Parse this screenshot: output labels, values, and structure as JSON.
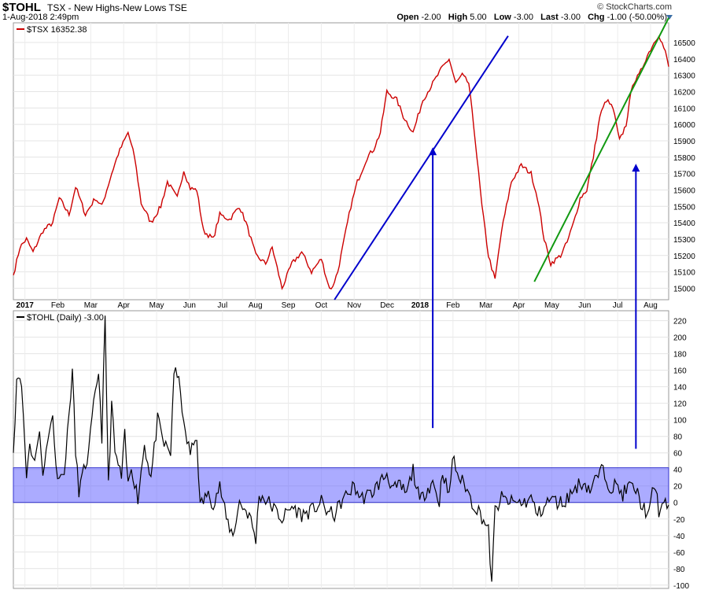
{
  "header": {
    "symbol": "$TOHL",
    "description": "TSX - New Highs-New Lows TSE",
    "date": "1-Aug-2018 2:49pm",
    "brand": "© StockCharts.com",
    "quote": {
      "open_label": "Open",
      "open": "-2.00",
      "high_label": "High",
      "high": "5.00",
      "low_label": "Low",
      "low": "-3.00",
      "last_label": "Last",
      "last": "-3.00",
      "chg_label": "Chg",
      "chg": "-1.00 (-50.00%)"
    }
  },
  "colors": {
    "tsx": "#cc0000",
    "tohl": "#000000",
    "band": "#6666ff",
    "blue_line": "#0000cc",
    "green_line": "#119911",
    "arrow": "#0000cc"
  },
  "chart_data": [
    {
      "type": "line",
      "legend": "$TSX 16352.38",
      "y_ticks": [
        15000,
        15100,
        15200,
        15300,
        15400,
        15500,
        15600,
        15700,
        15800,
        15900,
        16000,
        16100,
        16200,
        16300,
        16400,
        16500
      ],
      "ylim": [
        14930,
        16620
      ],
      "x_ticks": [
        "2017",
        "Feb",
        "Mar",
        "Apr",
        "May",
        "Jun",
        "Jul",
        "Aug",
        "Sep",
        "Oct",
        "Nov",
        "Dec",
        "2018",
        "Feb",
        "Mar",
        "Apr",
        "May",
        "Jun",
        "Jul",
        "Aug"
      ],
      "series": [
        {
          "name": "$TSX",
          "anchors": [
            [
              0,
              15080
            ],
            [
              0.01,
              15250
            ],
            [
              0.02,
              15300
            ],
            [
              0.03,
              15220
            ],
            [
              0.045,
              15350
            ],
            [
              0.06,
              15400
            ],
            [
              0.07,
              15550
            ],
            [
              0.085,
              15450
            ],
            [
              0.095,
              15620
            ],
            [
              0.11,
              15450
            ],
            [
              0.125,
              15550
            ],
            [
              0.135,
              15500
            ],
            [
              0.15,
              15700
            ],
            [
              0.16,
              15820
            ],
            [
              0.175,
              15950
            ],
            [
              0.185,
              15800
            ],
            [
              0.195,
              15520
            ],
            [
              0.21,
              15400
            ],
            [
              0.225,
              15500
            ],
            [
              0.235,
              15650
            ],
            [
              0.25,
              15550
            ],
            [
              0.26,
              15720
            ],
            [
              0.27,
              15610
            ],
            [
              0.28,
              15600
            ],
            [
              0.29,
              15350
            ],
            [
              0.305,
              15300
            ],
            [
              0.315,
              15450
            ],
            [
              0.33,
              15420
            ],
            [
              0.345,
              15500
            ],
            [
              0.355,
              15400
            ],
            [
              0.37,
              15200
            ],
            [
              0.385,
              15150
            ],
            [
              0.395,
              15250
            ],
            [
              0.41,
              15000
            ],
            [
              0.425,
              15150
            ],
            [
              0.44,
              15220
            ],
            [
              0.455,
              15100
            ],
            [
              0.47,
              15180
            ],
            [
              0.48,
              15030
            ],
            [
              0.485,
              14990
            ],
            [
              0.495,
              15100
            ],
            [
              0.505,
              15300
            ],
            [
              0.515,
              15500
            ],
            [
              0.525,
              15650
            ],
            [
              0.54,
              15800
            ],
            [
              0.55,
              15850
            ],
            [
              0.56,
              15950
            ],
            [
              0.57,
              16200
            ],
            [
              0.585,
              16150
            ],
            [
              0.595,
              16050
            ],
            [
              0.61,
              15950
            ],
            [
              0.625,
              16150
            ],
            [
              0.64,
              16250
            ],
            [
              0.655,
              16350
            ],
            [
              0.665,
              16400
            ],
            [
              0.675,
              16250
            ],
            [
              0.685,
              16300
            ],
            [
              0.695,
              16250
            ],
            [
              0.705,
              15900
            ],
            [
              0.715,
              15500
            ],
            [
              0.725,
              15200
            ],
            [
              0.735,
              15050
            ],
            [
              0.745,
              15350
            ],
            [
              0.76,
              15650
            ],
            [
              0.775,
              15750
            ],
            [
              0.79,
              15700
            ],
            [
              0.8,
              15550
            ],
            [
              0.81,
              15300
            ],
            [
              0.82,
              15150
            ],
            [
              0.835,
              15200
            ],
            [
              0.845,
              15280
            ],
            [
              0.855,
              15400
            ],
            [
              0.865,
              15550
            ],
            [
              0.875,
              15600
            ],
            [
              0.885,
              15800
            ],
            [
              0.895,
              16050
            ],
            [
              0.905,
              16150
            ],
            [
              0.915,
              16100
            ],
            [
              0.925,
              15900
            ],
            [
              0.935,
              16000
            ],
            [
              0.945,
              16250
            ],
            [
              0.955,
              16300
            ],
            [
              0.965,
              16400
            ],
            [
              0.975,
              16480
            ],
            [
              0.985,
              16550
            ],
            [
              0.995,
              16440
            ],
            [
              1.0,
              16352
            ]
          ]
        }
      ],
      "trendlines": [
        {
          "name": "blue",
          "x0": 0.49,
          "y0": 14930,
          "x1": 0.755,
          "y1": 16540
        },
        {
          "name": "green",
          "x0": 0.795,
          "y0": 15040,
          "x1": 1.0,
          "y1": 16650
        }
      ]
    },
    {
      "type": "line",
      "legend": "$TOHL (Daily) -3.00",
      "y_ticks": [
        -100,
        -80,
        -60,
        -40,
        -20,
        0,
        20,
        40,
        60,
        80,
        100,
        120,
        140,
        160,
        180,
        200,
        220
      ],
      "ylim": [
        -104,
        232
      ],
      "band": [
        0,
        42
      ],
      "series": [
        {
          "name": "$TOHL",
          "anchors": [
            [
              0,
              60
            ],
            [
              0.005,
              150
            ],
            [
              0.01,
              158
            ],
            [
              0.015,
              110
            ],
            [
              0.02,
              30
            ],
            [
              0.025,
              75
            ],
            [
              0.03,
              50
            ],
            [
              0.04,
              80
            ],
            [
              0.045,
              40
            ],
            [
              0.05,
              60
            ],
            [
              0.06,
              110
            ],
            [
              0.065,
              40
            ],
            [
              0.075,
              30
            ],
            [
              0.08,
              55
            ],
            [
              0.09,
              160
            ],
            [
              0.095,
              60
            ],
            [
              0.1,
              15
            ],
            [
              0.105,
              30
            ],
            [
              0.115,
              60
            ],
            [
              0.12,
              100
            ],
            [
              0.13,
              160
            ],
            [
              0.135,
              80
            ],
            [
              0.14,
              220
            ],
            [
              0.145,
              20
            ],
            [
              0.15,
              120
            ],
            [
              0.155,
              60
            ],
            [
              0.165,
              30
            ],
            [
              0.17,
              80
            ],
            [
              0.175,
              20
            ],
            [
              0.18,
              45
            ],
            [
              0.19,
              5
            ],
            [
              0.2,
              70
            ],
            [
              0.21,
              30
            ],
            [
              0.22,
              100
            ],
            [
              0.23,
              70
            ],
            [
              0.24,
              60
            ],
            [
              0.245,
              160
            ],
            [
              0.255,
              140
            ],
            [
              0.26,
              90
            ],
            [
              0.27,
              60
            ],
            [
              0.28,
              80
            ],
            [
              0.285,
              -5
            ],
            [
              0.295,
              10
            ],
            [
              0.305,
              0
            ],
            [
              0.315,
              20
            ],
            [
              0.325,
              -20
            ],
            [
              0.335,
              -40
            ],
            [
              0.345,
              0
            ],
            [
              0.36,
              -15
            ],
            [
              0.37,
              -45
            ],
            [
              0.375,
              10
            ],
            [
              0.39,
              0
            ],
            [
              0.4,
              -10
            ],
            [
              0.41,
              -20
            ],
            [
              0.425,
              -5
            ],
            [
              0.44,
              -15
            ],
            [
              0.455,
              -10
            ],
            [
              0.47,
              0
            ],
            [
              0.48,
              -12
            ],
            [
              0.49,
              -15
            ],
            [
              0.5,
              0
            ],
            [
              0.51,
              10
            ],
            [
              0.52,
              20
            ],
            [
              0.53,
              5
            ],
            [
              0.545,
              10
            ],
            [
              0.56,
              25
            ],
            [
              0.57,
              35
            ],
            [
              0.58,
              15
            ],
            [
              0.59,
              20
            ],
            [
              0.6,
              10
            ],
            [
              0.61,
              40
            ],
            [
              0.62,
              0
            ],
            [
              0.63,
              15
            ],
            [
              0.64,
              25
            ],
            [
              0.65,
              0
            ],
            [
              0.655,
              40
            ],
            [
              0.665,
              5
            ],
            [
              0.67,
              55
            ],
            [
              0.68,
              30
            ],
            [
              0.69,
              20
            ],
            [
              0.7,
              0
            ],
            [
              0.71,
              -10
            ],
            [
              0.72,
              -25
            ],
            [
              0.725,
              -35
            ],
            [
              0.73,
              -100
            ],
            [
              0.735,
              -10
            ],
            [
              0.745,
              5
            ],
            [
              0.76,
              0
            ],
            [
              0.78,
              0
            ],
            [
              0.79,
              5
            ],
            [
              0.8,
              -15
            ],
            [
              0.81,
              -5
            ],
            [
              0.82,
              5
            ],
            [
              0.83,
              0
            ],
            [
              0.84,
              0
            ],
            [
              0.85,
              10
            ],
            [
              0.86,
              20
            ],
            [
              0.87,
              25
            ],
            [
              0.88,
              15
            ],
            [
              0.89,
              30
            ],
            [
              0.9,
              40
            ],
            [
              0.91,
              20
            ],
            [
              0.92,
              20
            ],
            [
              0.93,
              10
            ],
            [
              0.94,
              20
            ],
            [
              0.95,
              15
            ],
            [
              0.96,
              -5
            ],
            [
              0.97,
              -15
            ],
            [
              0.975,
              10
            ],
            [
              0.98,
              20
            ],
            [
              0.985,
              -10
            ],
            [
              0.99,
              -5
            ],
            [
              1.0,
              -3
            ]
          ]
        }
      ],
      "arrows": [
        {
          "x": 0.64,
          "y_from": 90,
          "y_to": 15860
        },
        {
          "x": 0.95,
          "y_from": 65,
          "y_to": 15760
        }
      ]
    }
  ]
}
